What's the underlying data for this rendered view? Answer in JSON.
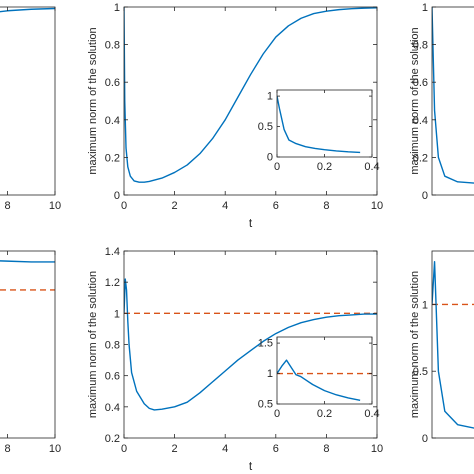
{
  "chart_data": [
    {
      "id": "top-left",
      "type": "line",
      "xlim": [
        6,
        10
      ],
      "ylim": [
        0,
        1
      ],
      "xticks": [
        8,
        10
      ],
      "xtick_labels": [
        "8",
        "10"
      ],
      "yticks": [],
      "ytick_labels": [],
      "xlabel": "",
      "ylabel": "",
      "series": [
        {
          "color": "#0072BD",
          "x": [
            6.0,
            7.0,
            8.0,
            9.0,
            10.0
          ],
          "y": [
            0.93,
            0.965,
            0.98,
            0.988,
            0.992
          ]
        }
      ]
    },
    {
      "id": "top-middle",
      "type": "line",
      "xlim": [
        0,
        10
      ],
      "ylim": [
        0,
        1
      ],
      "xticks": [
        0,
        2,
        4,
        6,
        8,
        10
      ],
      "xtick_labels": [
        "0",
        "2",
        "4",
        "6",
        "8",
        "10"
      ],
      "yticks": [
        0,
        0.2,
        0.4,
        0.6,
        0.8,
        1
      ],
      "ytick_labels": [
        "0",
        "0.2",
        "0.4",
        "0.6",
        "0.8",
        "1"
      ],
      "xlabel": "t",
      "ylabel": "maximum norm of the solution",
      "series": [
        {
          "color": "#0072BD",
          "x": [
            0,
            0.03,
            0.08,
            0.15,
            0.25,
            0.4,
            0.6,
            0.8,
            1.0,
            1.5,
            2.0,
            2.5,
            3.0,
            3.5,
            4.0,
            4.5,
            5.0,
            5.5,
            6.0,
            6.5,
            7.0,
            7.5,
            8.0,
            8.5,
            9.0,
            9.5,
            10.0
          ],
          "y": [
            1.0,
            0.5,
            0.25,
            0.15,
            0.1,
            0.075,
            0.068,
            0.068,
            0.072,
            0.09,
            0.12,
            0.16,
            0.22,
            0.3,
            0.4,
            0.52,
            0.64,
            0.75,
            0.84,
            0.9,
            0.94,
            0.965,
            0.978,
            0.986,
            0.991,
            0.994,
            0.996
          ]
        }
      ],
      "inset": {
        "xlim": [
          0,
          0.4
        ],
        "ylim": [
          0,
          1.1
        ],
        "xticks": [
          0,
          0.2,
          0.4
        ],
        "xtick_labels": [
          "0",
          "0.2",
          "0.4"
        ],
        "yticks": [
          0,
          0.5,
          1
        ],
        "ytick_labels": [
          "0",
          "0.5",
          "1"
        ],
        "series": [
          {
            "color": "#0072BD",
            "x": [
              0,
              0.01,
              0.03,
              0.05,
              0.08,
              0.12,
              0.16,
              0.2,
              0.25,
              0.3,
              0.35
            ],
            "y": [
              1.0,
              0.8,
              0.45,
              0.28,
              0.22,
              0.17,
              0.14,
              0.12,
              0.1,
              0.085,
              0.075
            ]
          }
        ]
      }
    },
    {
      "id": "top-right",
      "type": "line",
      "xlim": [
        0,
        1
      ],
      "ylim": [
        0,
        1
      ],
      "xticks": [],
      "xtick_labels": [],
      "yticks": [
        0,
        0.2,
        0.4,
        0.6,
        0.8,
        1
      ],
      "ytick_labels": [
        "0",
        "0.2",
        "0.4",
        "0.6",
        "0.8",
        "1"
      ],
      "xlabel": "",
      "ylabel": "maximum norm of the solution",
      "series": [
        {
          "color": "#0072BD",
          "x": [
            0,
            0.02,
            0.05,
            0.1,
            0.2,
            0.4
          ],
          "y": [
            1.0,
            0.45,
            0.2,
            0.1,
            0.07,
            0.06
          ]
        }
      ]
    },
    {
      "id": "bottom-left",
      "type": "line",
      "xlim": [
        6,
        10
      ],
      "ylim": [
        0.2,
        1.4
      ],
      "xticks": [
        8,
        10
      ],
      "xtick_labels": [
        "8",
        "10"
      ],
      "yticks": [],
      "ytick_labels": [],
      "xlabel": "",
      "ylabel": "",
      "reference_value": 1.15,
      "series": [
        {
          "color": "#0072BD",
          "x": [
            6.0,
            7.0,
            8.0,
            9.0,
            10.0
          ],
          "y": [
            1.345,
            1.34,
            1.335,
            1.33,
            1.33
          ]
        }
      ]
    },
    {
      "id": "bottom-middle",
      "type": "line",
      "xlim": [
        0,
        10
      ],
      "ylim": [
        0.2,
        1.4
      ],
      "xticks": [
        0,
        2,
        4,
        6,
        8,
        10
      ],
      "xtick_labels": [
        "0",
        "2",
        "4",
        "6",
        "8",
        "10"
      ],
      "yticks": [
        0.2,
        0.4,
        0.6,
        0.8,
        1,
        1.2,
        1.4
      ],
      "ytick_labels": [
        "0.2",
        "0.4",
        "0.6",
        "0.8",
        "1",
        "1.2",
        "1.4"
      ],
      "xlabel": "t",
      "ylabel": "maximum norm of the solution",
      "reference_value": 1.0,
      "series": [
        {
          "color": "#0072BD",
          "x": [
            0,
            0.05,
            0.1,
            0.15,
            0.2,
            0.3,
            0.5,
            0.8,
            1.0,
            1.2,
            1.5,
            2.0,
            2.5,
            3.0,
            3.5,
            4.0,
            4.5,
            5.0,
            5.5,
            6.0,
            6.5,
            7.0,
            7.5,
            8.0,
            8.5,
            9.0,
            9.5,
            10.0
          ],
          "y": [
            1.0,
            1.22,
            1.15,
            0.95,
            0.8,
            0.62,
            0.5,
            0.42,
            0.39,
            0.38,
            0.385,
            0.4,
            0.43,
            0.49,
            0.56,
            0.63,
            0.7,
            0.76,
            0.82,
            0.87,
            0.91,
            0.94,
            0.96,
            0.975,
            0.985,
            0.99,
            0.995,
            0.995
          ]
        }
      ],
      "inset": {
        "xlim": [
          0,
          0.4
        ],
        "ylim": [
          0.5,
          1.6
        ],
        "xticks": [
          0,
          0.2,
          0.4
        ],
        "xtick_labels": [
          "0",
          "0.2",
          "0.4"
        ],
        "yticks": [
          0.5,
          1,
          1.5
        ],
        "ytick_labels": [
          "0.5",
          "1",
          "1.5"
        ],
        "reference_value": 1.0,
        "series": [
          {
            "color": "#0072BD",
            "x": [
              0,
              0.02,
              0.04,
              0.06,
              0.08,
              0.1,
              0.15,
              0.2,
              0.25,
              0.3,
              0.35
            ],
            "y": [
              1.0,
              1.12,
              1.22,
              1.1,
              0.98,
              0.95,
              0.82,
              0.72,
              0.65,
              0.6,
              0.56
            ]
          }
        ]
      }
    },
    {
      "id": "bottom-right",
      "type": "line",
      "xlim": [
        0,
        1
      ],
      "ylim": [
        0,
        1.4
      ],
      "xticks": [],
      "xtick_labels": [],
      "yticks": [
        0,
        0.5,
        1
      ],
      "ytick_labels": [
        "0",
        "0.5",
        "1"
      ],
      "xlabel": "",
      "ylabel": "maximum norm of the solution",
      "reference_value": 1.0,
      "series": [
        {
          "color": "#0072BD",
          "x": [
            0,
            0.02,
            0.05,
            0.1,
            0.2,
            0.4
          ],
          "y": [
            1.0,
            1.32,
            0.5,
            0.2,
            0.1,
            0.06
          ]
        }
      ]
    }
  ],
  "colors": {
    "series": "#0072BD",
    "reference": "#D95319",
    "axes": "#262626"
  }
}
